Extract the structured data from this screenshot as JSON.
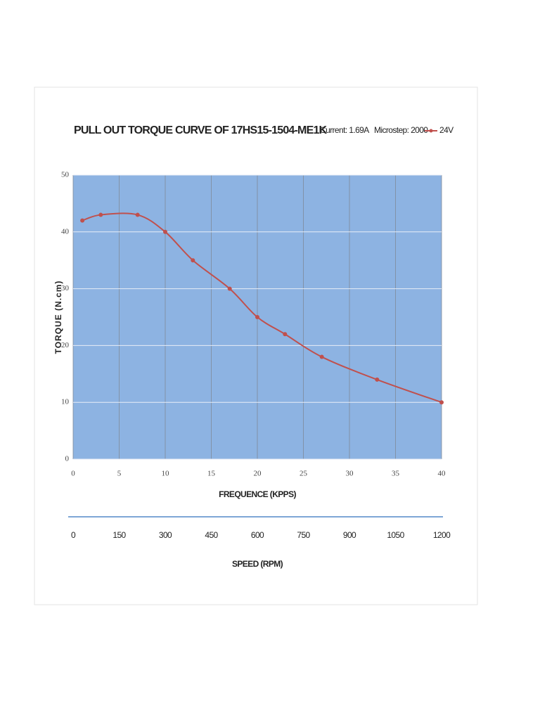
{
  "chart_data": {
    "type": "line",
    "title": "PULL OUT TORQUE CURVE OF 17HS15-1504-ME1K",
    "annotations": [
      "Current: 1.69A",
      "Microstep: 2000"
    ],
    "x_label": "FREQUENCE (KPPS)",
    "y_label": "TORQUE (N.cm)",
    "x2_label": "SPEED (RPM)",
    "x": [
      1,
      3,
      7,
      10,
      13,
      17,
      20,
      23,
      27,
      33,
      40
    ],
    "series": [
      {
        "name": "24V",
        "color": "#c0504d",
        "values": [
          42,
          43,
          43,
          40,
          35,
          30,
          25,
          22,
          18,
          14,
          10
        ]
      }
    ],
    "xlim": [
      0,
      40
    ],
    "xticks": [
      0,
      5,
      10,
      15,
      20,
      25,
      30,
      35,
      40
    ],
    "ylim": [
      0,
      50
    ],
    "yticks": [
      0,
      10,
      20,
      30,
      40,
      50
    ],
    "x2lim": [
      0,
      1200
    ],
    "x2ticks": [
      0,
      150,
      300,
      450,
      600,
      750,
      900,
      1050,
      1200
    ],
    "grid": true,
    "plot_background": "#8db3e2",
    "legend": "top-right"
  }
}
